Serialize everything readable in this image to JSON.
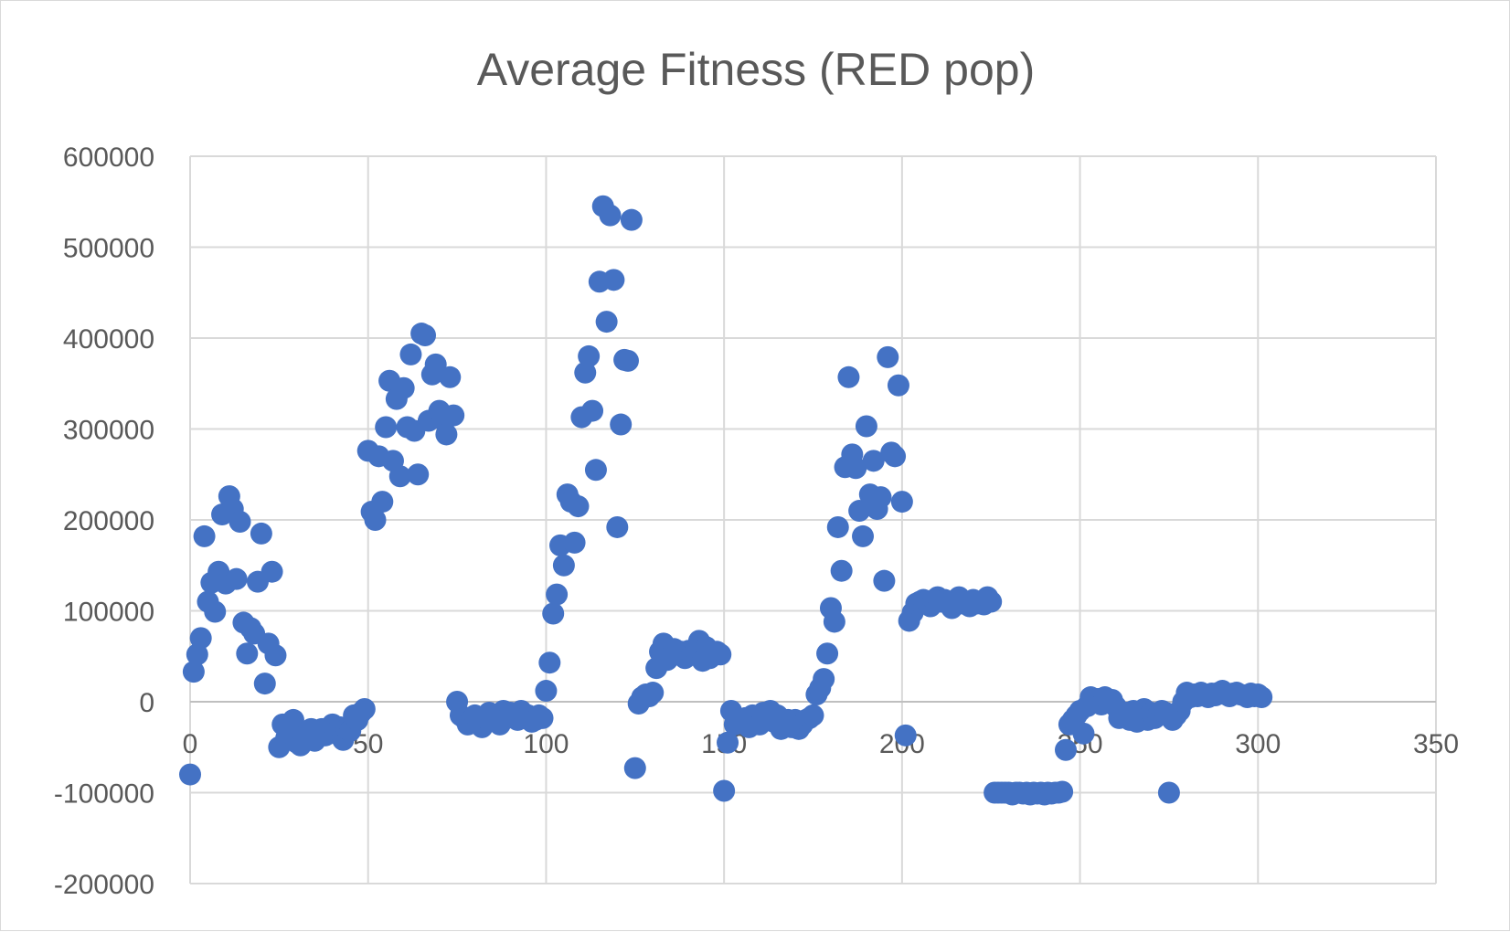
{
  "chart_data": {
    "type": "scatter",
    "title": "Average Fitness (RED pop)",
    "xlabel": "",
    "ylabel": "",
    "xlim": [
      0,
      350
    ],
    "ylim": [
      -200000,
      600000
    ],
    "x_ticks": [
      0,
      50,
      100,
      150,
      200,
      250,
      300,
      350
    ],
    "y_ticks": [
      -200000,
      -100000,
      0,
      100000,
      200000,
      300000,
      400000,
      500000,
      600000
    ],
    "x_tick_labels": [
      "0",
      "50",
      "100",
      "150",
      "200",
      "250",
      "300",
      "350"
    ],
    "y_tick_labels": [
      "-200000",
      "-100000",
      "0",
      "100000",
      "200000",
      "300000",
      "400000",
      "500000",
      "600000"
    ],
    "grid": true,
    "legend": "none",
    "marker_color": "#4472c4",
    "points": [
      [
        0,
        -80000
      ],
      [
        1,
        33000
      ],
      [
        2,
        52000
      ],
      [
        3,
        70000
      ],
      [
        4,
        182000
      ],
      [
        5,
        110000
      ],
      [
        6,
        131000
      ],
      [
        7,
        99000
      ],
      [
        8,
        143000
      ],
      [
        9,
        206000
      ],
      [
        10,
        130000
      ],
      [
        11,
        226000
      ],
      [
        12,
        212000
      ],
      [
        13,
        135000
      ],
      [
        14,
        198000
      ],
      [
        15,
        87000
      ],
      [
        16,
        53000
      ],
      [
        17,
        81000
      ],
      [
        18,
        75000
      ],
      [
        19,
        132000
      ],
      [
        20,
        185000
      ],
      [
        21,
        20000
      ],
      [
        22,
        64000
      ],
      [
        23,
        143000
      ],
      [
        24,
        51000
      ],
      [
        25,
        -50000
      ],
      [
        26,
        -25000
      ],
      [
        27,
        -40000
      ],
      [
        28,
        -35000
      ],
      [
        29,
        -20000
      ],
      [
        30,
        -45000
      ],
      [
        31,
        -48000
      ],
      [
        32,
        -38000
      ],
      [
        33,
        -42000
      ],
      [
        34,
        -30000
      ],
      [
        35,
        -43000
      ],
      [
        36,
        -38000
      ],
      [
        37,
        -30000
      ],
      [
        38,
        -37000
      ],
      [
        39,
        -32000
      ],
      [
        40,
        -25000
      ],
      [
        41,
        -35000
      ],
      [
        42,
        -28000
      ],
      [
        43,
        -42000
      ],
      [
        44,
        -30000
      ],
      [
        45,
        -32000
      ],
      [
        46,
        -15000
      ],
      [
        47,
        -20000
      ],
      [
        48,
        -12000
      ],
      [
        49,
        -8000
      ],
      [
        50,
        276000
      ],
      [
        51,
        209000
      ],
      [
        52,
        200000
      ],
      [
        53,
        270000
      ],
      [
        54,
        220000
      ],
      [
        55,
        302000
      ],
      [
        56,
        353000
      ],
      [
        57,
        265000
      ],
      [
        58,
        333000
      ],
      [
        59,
        248000
      ],
      [
        60,
        345000
      ],
      [
        61,
        302000
      ],
      [
        62,
        382000
      ],
      [
        63,
        298000
      ],
      [
        64,
        250000
      ],
      [
        65,
        405000
      ],
      [
        66,
        403000
      ],
      [
        67,
        309000
      ],
      [
        68,
        360000
      ],
      [
        69,
        371000
      ],
      [
        70,
        320000
      ],
      [
        71,
        310000
      ],
      [
        72,
        294000
      ],
      [
        73,
        357000
      ],
      [
        74,
        315000
      ],
      [
        75,
        0
      ],
      [
        76,
        -15000
      ],
      [
        77,
        -18000
      ],
      [
        78,
        -25000
      ],
      [
        79,
        -20000
      ],
      [
        80,
        -15000
      ],
      [
        81,
        -22000
      ],
      [
        82,
        -28000
      ],
      [
        83,
        -18000
      ],
      [
        84,
        -12000
      ],
      [
        85,
        -20000
      ],
      [
        86,
        -15000
      ],
      [
        87,
        -25000
      ],
      [
        88,
        -10000
      ],
      [
        89,
        -18000
      ],
      [
        90,
        -12000
      ],
      [
        91,
        -15000
      ],
      [
        92,
        -20000
      ],
      [
        93,
        -10000
      ],
      [
        94,
        -18000
      ],
      [
        95,
        -15000
      ],
      [
        96,
        -22000
      ],
      [
        97,
        -20000
      ],
      [
        98,
        -15000
      ],
      [
        99,
        -18000
      ],
      [
        100,
        12000
      ],
      [
        101,
        43000
      ],
      [
        102,
        97000
      ],
      [
        103,
        118000
      ],
      [
        104,
        172000
      ],
      [
        105,
        150000
      ],
      [
        106,
        228000
      ],
      [
        107,
        220000
      ],
      [
        108,
        175000
      ],
      [
        109,
        215000
      ],
      [
        110,
        313000
      ],
      [
        111,
        362000
      ],
      [
        112,
        380000
      ],
      [
        113,
        320000
      ],
      [
        114,
        255000
      ],
      [
        115,
        462000
      ],
      [
        116,
        545000
      ],
      [
        117,
        418000
      ],
      [
        118,
        535000
      ],
      [
        119,
        464000
      ],
      [
        120,
        192000
      ],
      [
        121,
        305000
      ],
      [
        122,
        376000
      ],
      [
        123,
        375000
      ],
      [
        124,
        530000
      ],
      [
        125,
        -73000
      ],
      [
        126,
        -2000
      ],
      [
        127,
        5000
      ],
      [
        128,
        8000
      ],
      [
        129,
        6000
      ],
      [
        130,
        10000
      ],
      [
        131,
        37000
      ],
      [
        132,
        55000
      ],
      [
        133,
        64000
      ],
      [
        134,
        46000
      ],
      [
        135,
        50000
      ],
      [
        136,
        58000
      ],
      [
        137,
        52000
      ],
      [
        138,
        55000
      ],
      [
        139,
        48000
      ],
      [
        140,
        56000
      ],
      [
        141,
        52000
      ],
      [
        142,
        57000
      ],
      [
        143,
        67000
      ],
      [
        144,
        45000
      ],
      [
        145,
        60000
      ],
      [
        146,
        48000
      ],
      [
        147,
        52000
      ],
      [
        148,
        55000
      ],
      [
        149,
        52000
      ],
      [
        150,
        -98000
      ],
      [
        151,
        -45000
      ],
      [
        152,
        -10000
      ],
      [
        153,
        -25000
      ],
      [
        154,
        -20000
      ],
      [
        155,
        -22000
      ],
      [
        156,
        -18000
      ],
      [
        157,
        -28000
      ],
      [
        158,
        -15000
      ],
      [
        159,
        -20000
      ],
      [
        160,
        -25000
      ],
      [
        161,
        -12000
      ],
      [
        162,
        -20000
      ],
      [
        163,
        -10000
      ],
      [
        164,
        -22000
      ],
      [
        165,
        -15000
      ],
      [
        166,
        -30000
      ],
      [
        167,
        -25000
      ],
      [
        168,
        -20000
      ],
      [
        169,
        -28000
      ],
      [
        170,
        -20000
      ],
      [
        171,
        -30000
      ],
      [
        172,
        -25000
      ],
      [
        173,
        -20000
      ],
      [
        174,
        -18000
      ],
      [
        175,
        -15000
      ],
      [
        176,
        8000
      ],
      [
        177,
        15000
      ],
      [
        178,
        25000
      ],
      [
        179,
        53000
      ],
      [
        180,
        103000
      ],
      [
        181,
        88000
      ],
      [
        182,
        192000
      ],
      [
        183,
        144000
      ],
      [
        184,
        258000
      ],
      [
        185,
        357000
      ],
      [
        186,
        272000
      ],
      [
        187,
        257000
      ],
      [
        188,
        210000
      ],
      [
        189,
        182000
      ],
      [
        190,
        303000
      ],
      [
        191,
        228000
      ],
      [
        192,
        265000
      ],
      [
        193,
        212000
      ],
      [
        194,
        225000
      ],
      [
        195,
        133000
      ],
      [
        196,
        379000
      ],
      [
        197,
        274000
      ],
      [
        198,
        270000
      ],
      [
        199,
        348000
      ],
      [
        200,
        220000
      ],
      [
        201,
        -37000
      ],
      [
        202,
        89000
      ],
      [
        203,
        98000
      ],
      [
        204,
        108000
      ],
      [
        205,
        110000
      ],
      [
        206,
        112000
      ],
      [
        207,
        110000
      ],
      [
        208,
        105000
      ],
      [
        209,
        112000
      ],
      [
        210,
        115000
      ],
      [
        211,
        110000
      ],
      [
        212,
        112000
      ],
      [
        213,
        108000
      ],
      [
        214,
        103000
      ],
      [
        215,
        110000
      ],
      [
        216,
        115000
      ],
      [
        217,
        108000
      ],
      [
        218,
        110000
      ],
      [
        219,
        105000
      ],
      [
        220,
        112000
      ],
      [
        221,
        108000
      ],
      [
        222,
        110000
      ],
      [
        223,
        107000
      ],
      [
        224,
        115000
      ],
      [
        225,
        110000
      ],
      [
        226,
        -100000
      ],
      [
        227,
        -100000
      ],
      [
        228,
        -100000
      ],
      [
        229,
        -100000
      ],
      [
        230,
        -100000
      ],
      [
        231,
        -102000
      ],
      [
        232,
        -100000
      ],
      [
        233,
        -100000
      ],
      [
        234,
        -101000
      ],
      [
        235,
        -100000
      ],
      [
        236,
        -102000
      ],
      [
        237,
        -100000
      ],
      [
        238,
        -101000
      ],
      [
        239,
        -100000
      ],
      [
        240,
        -102000
      ],
      [
        241,
        -100000
      ],
      [
        242,
        -101000
      ],
      [
        243,
        -100000
      ],
      [
        244,
        -100000
      ],
      [
        245,
        -99000
      ],
      [
        246,
        -53000
      ],
      [
        247,
        -25000
      ],
      [
        248,
        -20000
      ],
      [
        249,
        -15000
      ],
      [
        250,
        -10000
      ],
      [
        251,
        -35000
      ],
      [
        252,
        -5000
      ],
      [
        253,
        5000
      ],
      [
        254,
        0
      ],
      [
        255,
        3000
      ],
      [
        256,
        -3000
      ],
      [
        257,
        5000
      ],
      [
        258,
        0
      ],
      [
        259,
        2000
      ],
      [
        260,
        -5000
      ],
      [
        261,
        -18000
      ],
      [
        262,
        -15000
      ],
      [
        263,
        -12000
      ],
      [
        264,
        -20000
      ],
      [
        265,
        -10000
      ],
      [
        266,
        -22000
      ],
      [
        267,
        -15000
      ],
      [
        268,
        -8000
      ],
      [
        269,
        -20000
      ],
      [
        270,
        -12000
      ],
      [
        271,
        -18000
      ],
      [
        272,
        -15000
      ],
      [
        273,
        -10000
      ],
      [
        274,
        -12000
      ],
      [
        275,
        -100000
      ],
      [
        276,
        -20000
      ],
      [
        277,
        -15000
      ],
      [
        278,
        -10000
      ],
      [
        279,
        0
      ],
      [
        280,
        10000
      ],
      [
        281,
        5000
      ],
      [
        282,
        8000
      ],
      [
        283,
        6000
      ],
      [
        284,
        10000
      ],
      [
        285,
        8000
      ],
      [
        286,
        5000
      ],
      [
        287,
        9000
      ],
      [
        288,
        7000
      ],
      [
        289,
        10000
      ],
      [
        290,
        12000
      ],
      [
        291,
        8000
      ],
      [
        292,
        6000
      ],
      [
        293,
        9000
      ],
      [
        294,
        10000
      ],
      [
        295,
        8000
      ],
      [
        296,
        7000
      ],
      [
        297,
        5000
      ],
      [
        298,
        9000
      ],
      [
        299,
        6000
      ],
      [
        300,
        8000
      ],
      [
        301,
        5000
      ]
    ]
  }
}
